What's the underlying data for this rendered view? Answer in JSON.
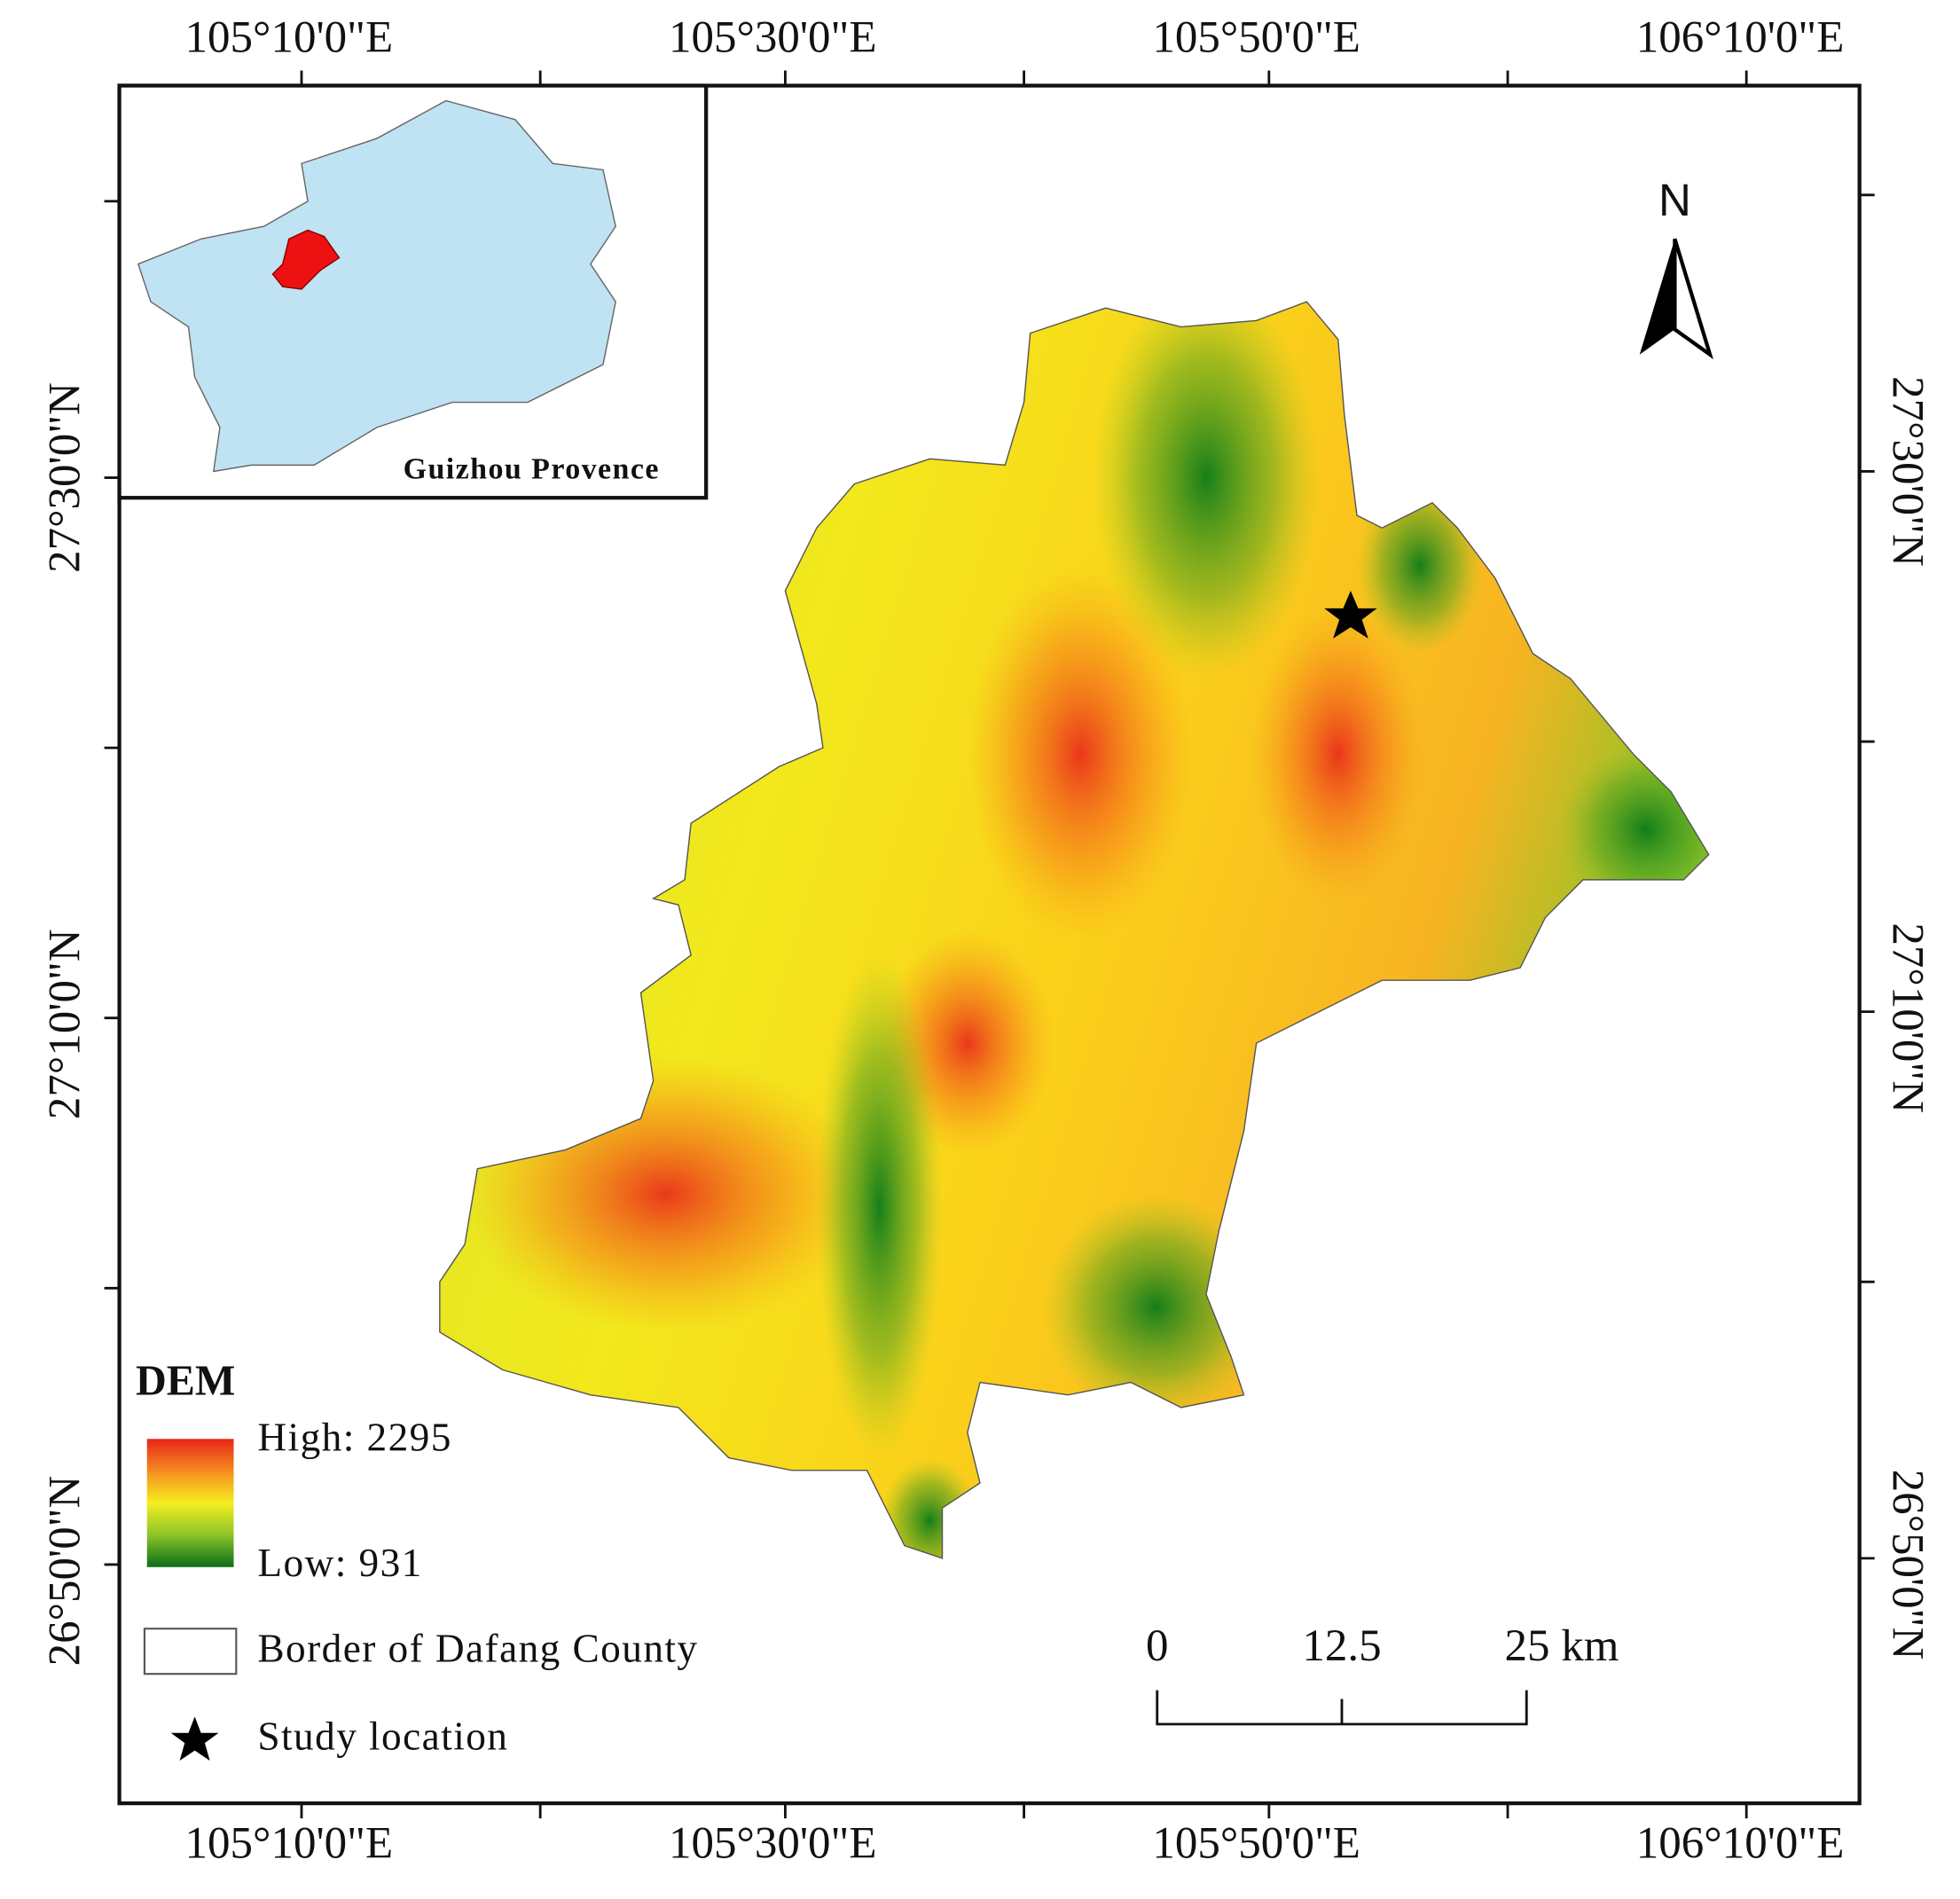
{
  "map": {
    "longitude_labels": [
      "105°10'0\"E",
      "105°30'0\"E",
      "105°50'0\"E",
      "106°10'0\"E"
    ],
    "latitude_labels": [
      "27°30'0\"N",
      "27°10'0\"N",
      "26°50'0\"N"
    ],
    "inset_label": "Guizhou Provence",
    "north_label": "N",
    "legend": {
      "title": "DEM",
      "high": "High: 2295",
      "low": "Low: 931",
      "border": "Border of Dafang County",
      "study": "Study location"
    },
    "scale_bar": {
      "labels": [
        "0",
        "12.5",
        "25 km"
      ]
    }
  }
}
